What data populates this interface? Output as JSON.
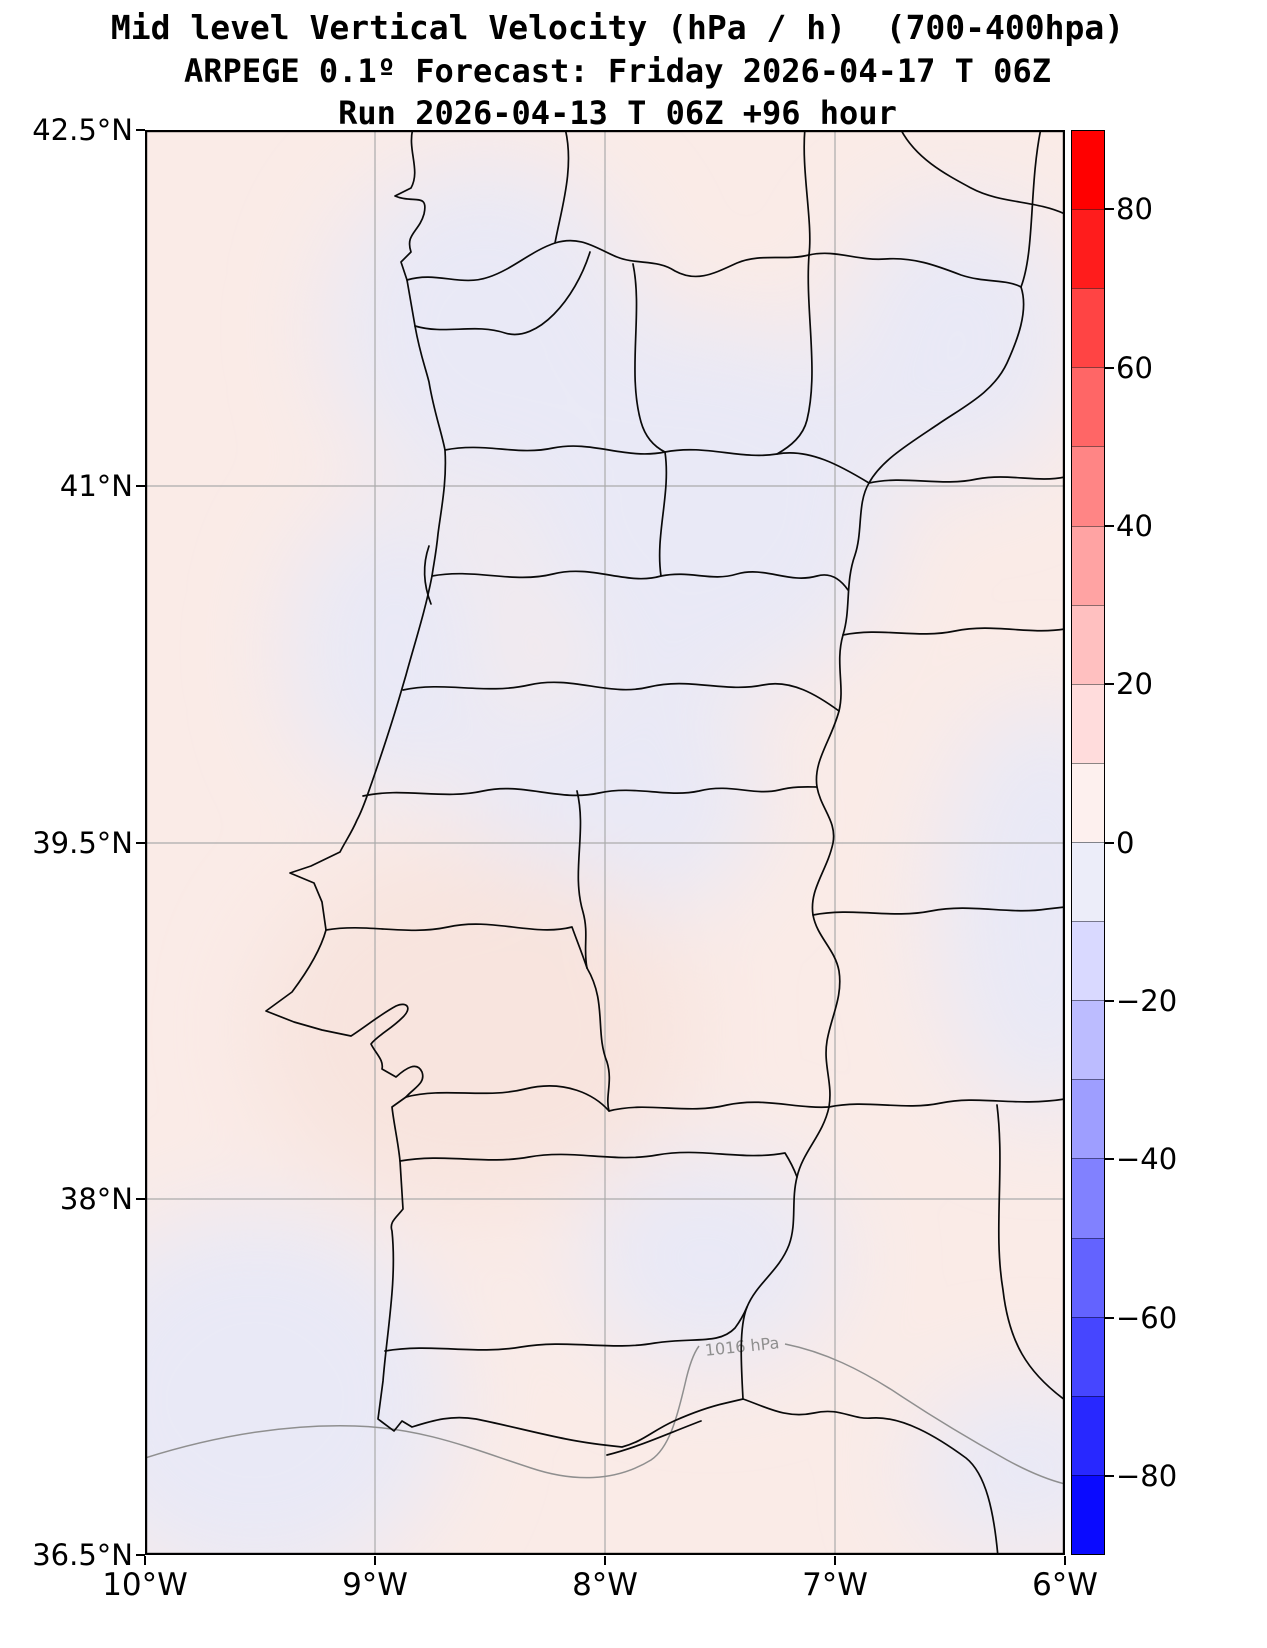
{
  "title": {
    "line1": "Mid level Vertical Velocity (hPa / h)  (700-400hpa)",
    "line2": "ARPEGE 0.1º Forecast: Friday 2026-04-17 T 06Z",
    "line3": "Run 2026-04-13 T 06Z +96 hour"
  },
  "axes": {
    "y_ticks": [
      "42.5°N",
      "41°N",
      "39.5°N",
      "38°N",
      "36.5°N"
    ],
    "x_ticks": [
      "10°W",
      "9°W",
      "8°W",
      "7°W",
      "6°W"
    ]
  },
  "colorbar": {
    "tick_labels": [
      "80",
      "60",
      "40",
      "20",
      "0",
      "−20",
      "−40",
      "−60",
      "−80"
    ],
    "segments": [
      "#ff0000",
      "#ff1c1c",
      "#ff4444",
      "#ff6666",
      "#ff8585",
      "#ffa3a3",
      "#ffc0c0",
      "#ffdcdc",
      "#fdf0ee",
      "#ecedf9",
      "#d9d9ff",
      "#bcbcff",
      "#9e9eff",
      "#8181ff",
      "#6363ff",
      "#4646ff",
      "#2828ff",
      "#0a0aff"
    ]
  },
  "map": {
    "contour_label": "1016 hPa",
    "fill_positive": "#faebe7",
    "fill_positive_deep": "#f8e4de",
    "fill_negative": "#e9e9f6",
    "boundary_color": "#0a0a0a",
    "grid_color": "#ababab",
    "contour_color": "#8f8f8f"
  },
  "chart_data": {
    "type": "heatmap",
    "title": "Mid level Vertical Velocity (hPa / h)  (700-400hpa)",
    "colorbar_ticks": [
      80,
      60,
      40,
      20,
      0,
      -20,
      -40,
      -60,
      -80
    ],
    "x_ticks_deg_west": [
      10,
      9,
      8,
      7,
      6
    ],
    "y_ticks_deg_north": [
      42.5,
      41,
      39.5,
      38,
      36.5
    ],
    "contours": [
      {
        "label": "1016 hPa",
        "value_hpa": 1016
      }
    ]
  }
}
